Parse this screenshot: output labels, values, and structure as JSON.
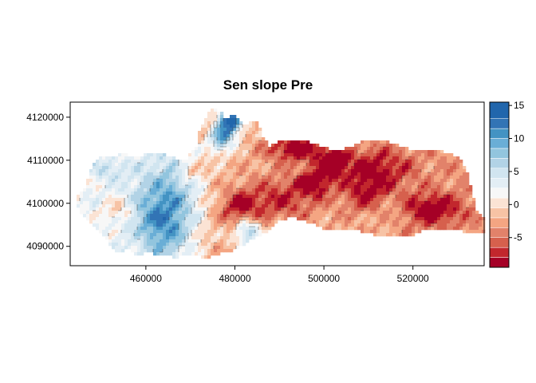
{
  "chart_data": {
    "type": "heatmap",
    "title": "Sen slope Pre",
    "xlabel": "",
    "ylabel": "",
    "xlim": [
      443000,
      536000
    ],
    "ylim": [
      4085500,
      4123500
    ],
    "x_ticks": [
      460000,
      480000,
      500000,
      520000
    ],
    "x_tick_labels": [
      "460000",
      "480000",
      "500000",
      "520000"
    ],
    "y_ticks": [
      4090000,
      4100000,
      4110000,
      4120000
    ],
    "y_tick_labels": [
      "4090000",
      "4100000",
      "4110000",
      "4120000"
    ],
    "legend": {
      "placement": "right",
      "range": [
        -9.5,
        15.5
      ],
      "ticks": [
        -5,
        0,
        5,
        10,
        15
      ],
      "tick_labels": [
        "-5",
        "0",
        "5",
        "10",
        "15"
      ],
      "colors": [
        "#a50026",
        "#c2272d",
        "#d6604d",
        "#e2826a",
        "#f4a582",
        "#f7c3a5",
        "#fbe3d4",
        "#f7f7f7",
        "#e3eef5",
        "#d1e5f0",
        "#b2d3e6",
        "#92c5de",
        "#6aaed6",
        "#4393c3",
        "#3274b5",
        "#2166ac"
      ],
      "breaks": [
        -9.5,
        -8,
        -6.5,
        -5,
        -3.5,
        -2,
        -0.5,
        1,
        2.5,
        4,
        5.5,
        7,
        8.5,
        10,
        11.5,
        13,
        15.5
      ]
    }
  }
}
